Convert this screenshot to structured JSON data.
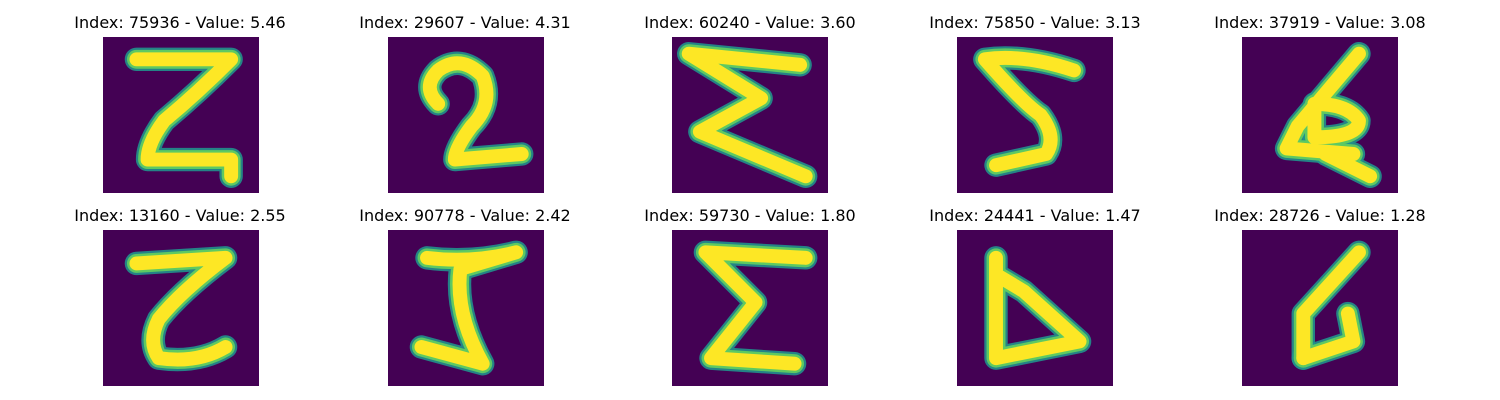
{
  "colors": {
    "background": "#440154",
    "stroke_outer": "#21918c",
    "stroke_mid": "#5ec962",
    "stroke_inner": "#fde725"
  },
  "panels": [
    {
      "title": "Index: 75936 - Value: 5.46"
    },
    {
      "title": "Index: 29607 - Value: 4.31"
    },
    {
      "title": "Index: 60240 - Value: 3.60"
    },
    {
      "title": "Index: 75850 - Value: 3.13"
    },
    {
      "title": "Index: 37919 - Value: 3.08"
    },
    {
      "title": "Index: 13160 - Value: 2.55"
    },
    {
      "title": "Index: 90778 - Value: 2.42"
    },
    {
      "title": "Index: 59730 - Value: 1.80"
    },
    {
      "title": "Index: 24441 - Value: 1.47"
    },
    {
      "title": "Index: 28726 - Value: 1.28"
    }
  ]
}
